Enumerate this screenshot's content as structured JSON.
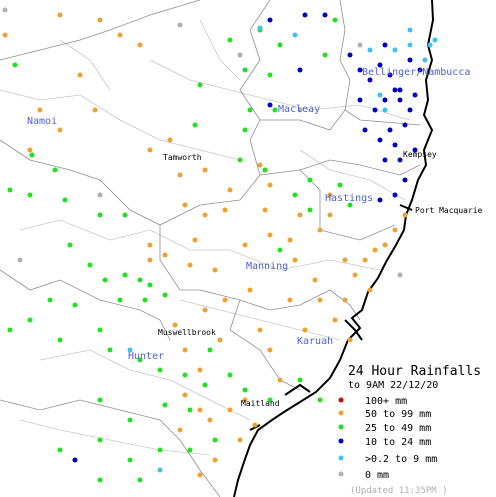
{
  "title": "24 Hour Rainfalls",
  "subtitle": "to 9AM 22/12/20",
  "legend": [
    {
      "label": "100+ mm",
      "color": "#e00000"
    },
    {
      "label": "50  to 99 mm",
      "color": "#f0a030"
    },
    {
      "label": "25  to 49 mm",
      "color": "#20e020"
    },
    {
      "label": "10  to 24 mm",
      "color": "#0000c0"
    },
    {
      "label": ">0.2 to 9 mm",
      "color": "#40c0f0"
    },
    {
      "label": "0 mm",
      "color": "#b0b0b0"
    }
  ],
  "places": {
    "namoi": "Namoi",
    "tamworth": "Tamworth",
    "macleay": "Macleay",
    "bellinger": "Bellinger/Nambucca",
    "kempsey": "Kempsey",
    "hastings": "Hastings",
    "port_macquarie": "Port Macquarie",
    "manning": "Manning",
    "muswellbrook": "Muswellbrook",
    "hunter": "Hunter",
    "karuah": "Karuah",
    "maitland": "Maitland"
  },
  "footer": "(Updated 11:35PM )"
}
